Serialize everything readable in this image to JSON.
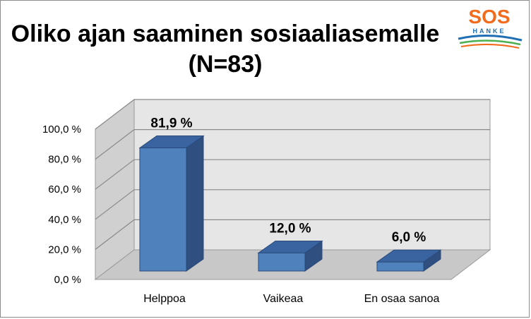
{
  "logo": {
    "main_text": "SOS",
    "sub_text": "HANKE",
    "color_main": "#F26B1D",
    "color_wave_blue": "#1F6FB2",
    "color_wave_green": "#4CAF50"
  },
  "chart_data": {
    "type": "bar",
    "title_line1": "Oliko ajan saaminen sosiaaliasemalle",
    "title_line2": "(N=83)",
    "categories": [
      "Helppoa",
      "Vaikeaa",
      "En osaa sanoa"
    ],
    "values": [
      81.9,
      12.0,
      6.0
    ],
    "value_labels": [
      "81,9 %",
      "12,0 %",
      "6,0 %"
    ],
    "y_ticks": [
      "0,0 %",
      "20,0 %",
      "40,0 %",
      "60,0 %",
      "80,0 %",
      "100,0 %"
    ],
    "ylim": [
      0,
      100
    ],
    "xlabel": "",
    "ylabel": "",
    "grid": true,
    "legend": "none",
    "bar_color": "#4F81BD",
    "bar_top_color": "#3A64A0",
    "bar_side_color": "#2E4F80",
    "wall_color": "#E6E6E6",
    "floor_color": "#C8C8C8"
  }
}
